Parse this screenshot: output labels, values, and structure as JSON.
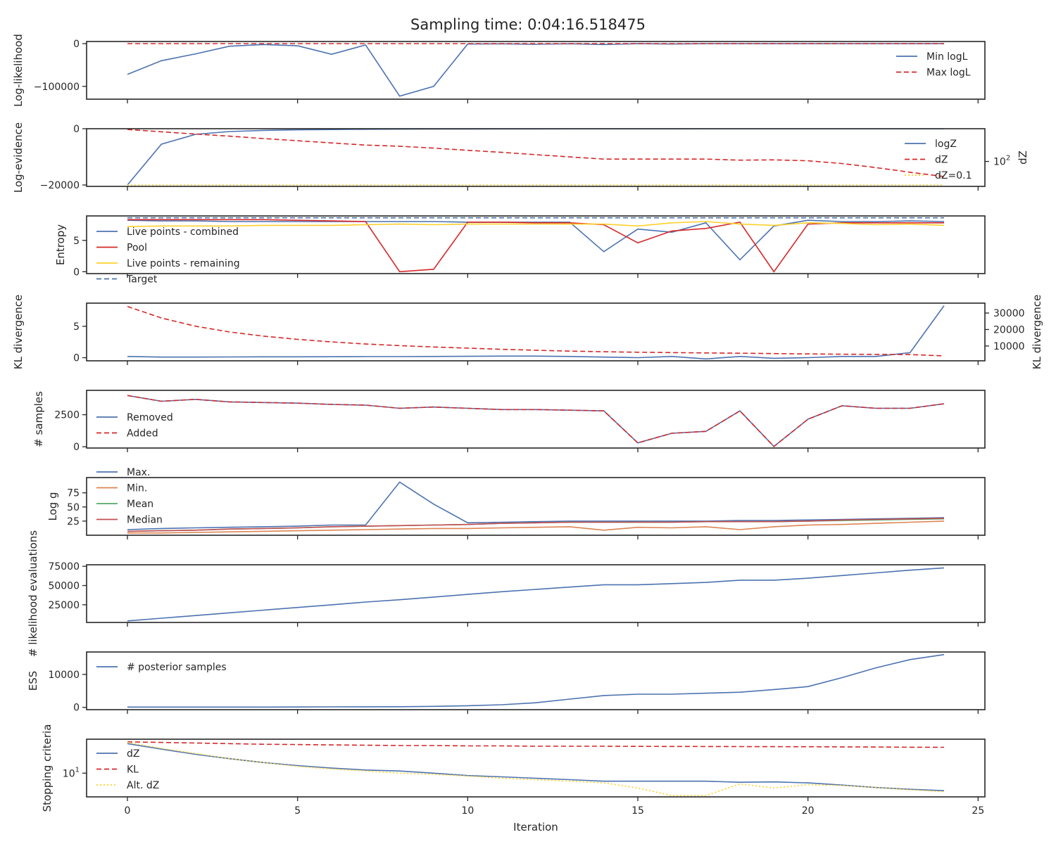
{
  "title": "Sampling time: 0:04:16.518475",
  "chart_data": [
    {
      "type": "line",
      "ylabel": "Log-likelihood",
      "ylim": [
        -130000,
        5000
      ],
      "yticks": [
        {
          "v": 0,
          "label": "0"
        },
        {
          "v": -100000,
          "label": "−100000"
        }
      ],
      "legend": "top-right",
      "series": [
        {
          "name": "Min logL",
          "color": "#4c72b0",
          "dash": "solid",
          "values": [
            -72000,
            -40000,
            -24000,
            -6000,
            -2000,
            -5000,
            -25000,
            -3000,
            -123000,
            -100000,
            -1000,
            -500,
            -1500,
            -300,
            -2000,
            -100,
            -1000,
            -100,
            -100,
            -100,
            -100,
            -100,
            -100,
            -100,
            -100
          ]
        },
        {
          "name": "Max logL",
          "color": "#d62728",
          "dash": "dashed",
          "values": [
            0,
            0,
            0,
            0,
            0,
            0,
            0,
            0,
            0,
            0,
            0,
            0,
            0,
            0,
            0,
            0,
            0,
            0,
            0,
            0,
            0,
            0,
            0,
            0,
            0
          ]
        }
      ]
    },
    {
      "type": "line",
      "ylabel": "Log-evidence",
      "y2label": "dZ",
      "ylim": [
        -20500,
        0
      ],
      "yticks": [
        {
          "v": 0,
          "label": "0"
        },
        {
          "v": -20000,
          "label": "−20000"
        }
      ],
      "y2_log": true,
      "y2lim": [
        3,
        10000
      ],
      "y2ticks": [
        {
          "v": 100,
          "label": "10",
          "exp": "2"
        }
      ],
      "legend": "top-right",
      "series": [
        {
          "name": "logZ",
          "color": "#4c72b0",
          "dash": "solid",
          "values": [
            -20000,
            -5500,
            -2000,
            -1000,
            -600,
            -400,
            -300,
            -200,
            -150,
            -120,
            -100,
            -80,
            -70,
            -60,
            -50,
            -45,
            -40,
            -35,
            -30,
            -28,
            -26,
            -24,
            -22,
            -20,
            -20
          ]
        },
        {
          "name": "dZ",
          "color": "#d62728",
          "dash": "dashed",
          "axis": "y2",
          "values": [
            9000,
            6500,
            4700,
            3500,
            2500,
            1850,
            1350,
            1000,
            850,
            650,
            480,
            360,
            260,
            190,
            140,
            140,
            140,
            140,
            120,
            125,
            110,
            75,
            42,
            22,
            12
          ]
        },
        {
          "name": "dZ=0.1",
          "color": "#ffd02b",
          "dash": "dotted",
          "values": [
            -20000,
            -20000,
            -20000,
            -20000,
            -20000,
            -20000,
            -20000,
            -20000,
            -20000,
            -20000,
            -20000,
            -20000,
            -20000,
            -20000,
            -20000,
            -20000,
            -20000,
            -20000,
            -20000,
            -20000,
            -20000,
            -20000,
            -20000,
            -20000,
            -20000
          ]
        }
      ]
    },
    {
      "type": "line",
      "ylabel": "Entropy",
      "ylim": [
        -0.3,
        8.9
      ],
      "yticks": [
        {
          "v": 0,
          "label": "0"
        },
        {
          "v": 5,
          "label": "5"
        }
      ],
      "legend": "upper-left",
      "series": [
        {
          "name": "Live points - combined",
          "color": "#4c72b0",
          "dash": "solid",
          "values": [
            8.2,
            8.1,
            8.1,
            8.0,
            8.0,
            8.0,
            8.0,
            8.0,
            8.0,
            8.0,
            7.9,
            7.9,
            7.9,
            7.9,
            3.2,
            6.8,
            6.3,
            7.8,
            1.9,
            7.3,
            8.2,
            8.0,
            8.0,
            8.1,
            8.0
          ]
        },
        {
          "name": "Pool",
          "color": "#d62728",
          "dash": "solid",
          "values": [
            8.3,
            8.3,
            8.3,
            8.3,
            8.3,
            8.2,
            8.1,
            8.0,
            0.0,
            0.4,
            7.9,
            7.9,
            7.8,
            7.8,
            7.5,
            4.6,
            6.5,
            6.9,
            7.9,
            0.0,
            7.6,
            7.8,
            7.8,
            7.8,
            7.8
          ]
        },
        {
          "name": "Live points - remaining",
          "color": "#ffd02b",
          "dash": "solid",
          "values": [
            7.2,
            7.3,
            7.3,
            7.3,
            7.4,
            7.4,
            7.4,
            7.5,
            7.6,
            7.5,
            7.6,
            7.6,
            7.6,
            7.6,
            7.6,
            7.3,
            7.8,
            8.0,
            7.6,
            7.4,
            7.8,
            7.7,
            7.5,
            7.6,
            7.4
          ]
        },
        {
          "name": "Target",
          "color": "#4c72b0",
          "dash": "dashed",
          "values": [
            8.6,
            8.6,
            8.6,
            8.6,
            8.6,
            8.6,
            8.6,
            8.6,
            8.6,
            8.6,
            8.6,
            8.6,
            8.6,
            8.6,
            8.6,
            8.6,
            8.6,
            8.6,
            8.6,
            8.6,
            8.6,
            8.6,
            8.6,
            8.6,
            8.6
          ]
        }
      ]
    },
    {
      "type": "line",
      "ylabel": "KL divergence",
      "y2label": "KL divergence",
      "ylim": [
        -0.5,
        8.7
      ],
      "yticks": [
        {
          "v": 0,
          "label": "0"
        },
        {
          "v": 5,
          "label": "5"
        }
      ],
      "y2lim": [
        1000,
        36000
      ],
      "y2ticks": [
        {
          "v": 10000,
          "label": "10000"
        },
        {
          "v": 20000,
          "label": "20000"
        },
        {
          "v": 30000,
          "label": "30000"
        }
      ],
      "series": [
        {
          "name": "",
          "color": "#4c72b0",
          "dash": "solid",
          "values": [
            0.2,
            0.1,
            0.1,
            0.12,
            0.14,
            0.14,
            0.15,
            0.17,
            0.17,
            0.2,
            0.22,
            0.25,
            0.25,
            0.2,
            0.1,
            0.0,
            0.2,
            -0.2,
            0.2,
            -0.1,
            0.0,
            0.2,
            0.2,
            0.8,
            8.3
          ]
        },
        {
          "name": "",
          "color": "#d62728",
          "dash": "dashed",
          "axis": "y2",
          "values": [
            34000,
            27000,
            22000,
            18500,
            16000,
            14000,
            12500,
            11200,
            10200,
            9400,
            8700,
            8000,
            7400,
            6900,
            6500,
            6200,
            6000,
            5800,
            5600,
            5400,
            5200,
            5000,
            4900,
            4800,
            4000
          ]
        }
      ]
    },
    {
      "type": "line",
      "ylabel": "# samples",
      "ylim": [
        -100,
        4400
      ],
      "yticks": [
        {
          "v": 0,
          "label": "0"
        },
        {
          "v": 2500,
          "label": "2500"
        }
      ],
      "legend": "center-left",
      "series": [
        {
          "name": "Removed",
          "color": "#4c72b0",
          "dash": "solid",
          "values": [
            4000,
            3550,
            3700,
            3500,
            3450,
            3400,
            3300,
            3250,
            3000,
            3100,
            3000,
            2900,
            2900,
            2850,
            2800,
            300,
            1050,
            1200,
            2800,
            20,
            2150,
            3200,
            3000,
            3000,
            3350
          ]
        },
        {
          "name": "Added",
          "color": "#d62728",
          "dash": "dashed",
          "values": [
            4000,
            3550,
            3700,
            3500,
            3450,
            3400,
            3300,
            3250,
            3000,
            3100,
            3000,
            2900,
            2900,
            2850,
            2800,
            300,
            1050,
            1200,
            2800,
            20,
            2150,
            3200,
            3000,
            3000,
            3350
          ]
        }
      ]
    },
    {
      "type": "line",
      "ylabel": "Log g",
      "ylim": [
        0,
        102
      ],
      "yticks": [
        {
          "v": 25,
          "label": "25"
        },
        {
          "v": 50,
          "label": "50"
        },
        {
          "v": 75,
          "label": "75"
        }
      ],
      "legend": "upper-left",
      "series": [
        {
          "name": "Max.",
          "color": "#4c72b0",
          "dash": "solid",
          "values": [
            10,
            12,
            13,
            14,
            15,
            16,
            18,
            18,
            94,
            55,
            22,
            23,
            24,
            25,
            25,
            25,
            25,
            25,
            26,
            26,
            27,
            28,
            29,
            30,
            31
          ]
        },
        {
          "name": "Min.",
          "color": "#dd8452",
          "dash": "solid",
          "values": [
            4,
            4,
            5,
            6,
            7,
            8,
            9,
            10,
            11,
            12,
            12,
            13,
            14,
            15,
            9,
            14,
            13,
            15,
            10,
            15,
            18,
            19,
            21,
            23,
            25
          ]
        },
        {
          "name": "Mean",
          "color": "#55a868",
          "dash": "solid",
          "values": [
            7,
            8,
            9,
            11,
            12,
            13,
            15,
            16,
            17,
            18,
            19,
            21,
            22,
            23,
            23,
            23,
            23,
            24,
            24,
            24,
            25,
            26,
            27,
            28,
            29
          ]
        },
        {
          "name": "Median",
          "color": "#c44e52",
          "dash": "solid",
          "values": [
            7,
            8,
            9,
            11,
            12,
            13,
            15,
            16,
            17,
            18,
            19,
            21,
            22,
            23,
            23,
            23,
            23,
            24,
            24,
            24,
            25,
            27,
            28,
            29,
            30
          ]
        }
      ]
    },
    {
      "type": "line",
      "ylabel": "# likelihood evaluations",
      "ylim": [
        2000,
        77000
      ],
      "yticks": [
        {
          "v": 25000,
          "label": "25000"
        },
        {
          "v": 50000,
          "label": "50000"
        },
        {
          "v": 75000,
          "label": "75000"
        }
      ],
      "series": [
        {
          "name": "",
          "color": "#4c72b0",
          "dash": "solid",
          "values": [
            4000,
            7500,
            11000,
            14500,
            18000,
            21500,
            25000,
            28500,
            31500,
            35000,
            38500,
            42000,
            45000,
            48000,
            51000,
            51000,
            52500,
            54000,
            57000,
            57000,
            59500,
            63000,
            66500,
            70000,
            73000
          ]
        }
      ]
    },
    {
      "type": "line",
      "ylabel": "ESS",
      "ylim": [
        -700,
        16800
      ],
      "yticks": [
        {
          "v": 0,
          "label": "0"
        },
        {
          "v": 10000,
          "label": "10000"
        }
      ],
      "legend": "upper-left",
      "series": [
        {
          "name": "# posterior samples",
          "color": "#4c72b0",
          "dash": "solid",
          "values": [
            100,
            100,
            100,
            100,
            100,
            120,
            150,
            170,
            200,
            300,
            500,
            800,
            1400,
            2500,
            3600,
            4000,
            4000,
            4300,
            4600,
            5400,
            6300,
            9000,
            12000,
            14500,
            16000
          ]
        }
      ]
    },
    {
      "type": "line",
      "ylabel": "Stopping criteria",
      "xlabel": "Iteration",
      "y_log": true,
      "ylim": [
        3.5,
        45
      ],
      "yticks": [
        {
          "v": 10,
          "label": "10",
          "exp": "1"
        }
      ],
      "legend": "center-left",
      "xlim": [
        -1.2,
        25.2
      ],
      "xticks": [
        0,
        5,
        10,
        15,
        20,
        25
      ],
      "series": [
        {
          "name": "dZ",
          "color": "#4c72b0",
          "dash": "solid",
          "values": [
            37,
            29,
            23,
            19,
            16,
            14,
            12.5,
            11.5,
            11,
            10,
            9,
            8.5,
            8,
            7.5,
            7,
            7,
            7,
            7,
            6.7,
            6.8,
            6.5,
            5.9,
            5.3,
            4.9,
            4.6
          ]
        },
        {
          "name": "KL",
          "color": "#d62728",
          "dash": "dashed",
          "values": [
            40,
            39,
            38,
            37,
            36,
            35.5,
            35,
            34.5,
            34,
            34,
            33.5,
            33.5,
            33,
            33,
            33,
            32.8,
            32.6,
            32.5,
            32.4,
            32.3,
            32.2,
            32,
            31.8,
            31.6,
            31.5
          ]
        },
        {
          "name": "Alt. dZ",
          "color": "#ffd02b",
          "dash": "dotted",
          "values": [
            39,
            30,
            24,
            19,
            16,
            13.5,
            12,
            11,
            10,
            9.5,
            8.8,
            8,
            7.5,
            7,
            6.5,
            5.2,
            3.7,
            3.7,
            6.2,
            5.2,
            6,
            5.8,
            5.3,
            4.8,
            4.4
          ]
        }
      ]
    }
  ]
}
